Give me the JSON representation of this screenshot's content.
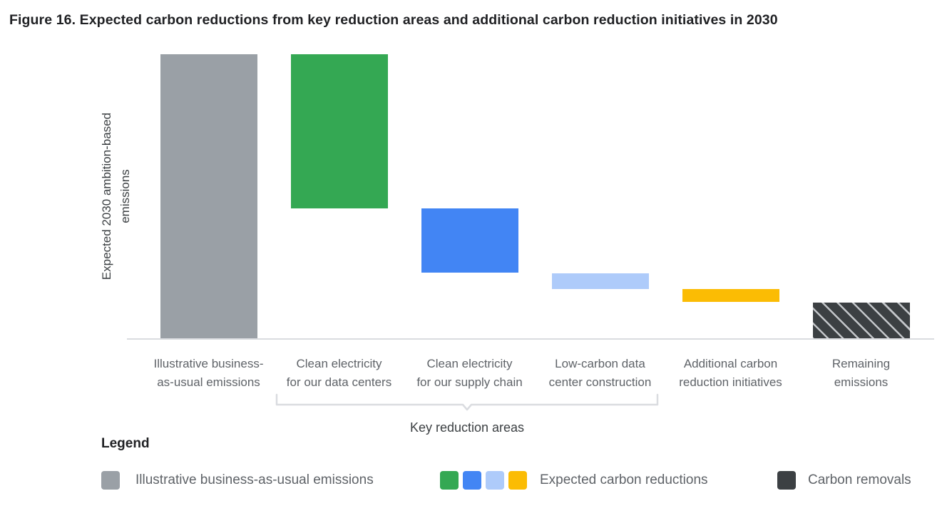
{
  "title": "Figure 16. Expected carbon reductions from key reduction areas and additional carbon reduction initiatives in 2030",
  "y_axis": {
    "label_line1": "Expected 2030",
    "label_line2": "ambition-based emissions"
  },
  "bracket": {
    "label": "Key reduction areas"
  },
  "legend": {
    "header": "Legend",
    "items": [
      {
        "id": "bau",
        "label": "Illustrative business-as-usual emissions",
        "swatches": [
          "gray"
        ],
        "hatch": false
      },
      {
        "id": "reductions",
        "label": "Expected carbon reductions",
        "swatches": [
          "green",
          "blue",
          "lightblue",
          "yellow"
        ],
        "hatch": false
      },
      {
        "id": "removals",
        "label": "Carbon removals",
        "swatches": [
          "dark"
        ],
        "hatch": true
      }
    ]
  },
  "colors": {
    "gray": "#9aa0a6",
    "green": "#34a853",
    "blue": "#4285f4",
    "lightblue": "#aecbfa",
    "yellow": "#fbbc04",
    "dark": "#3c4043",
    "axis_line": "#dadce0",
    "bracket_line": "#dadce0",
    "title_text": "#202124",
    "body_text": "#5f6368",
    "dark_text": "#3c4043"
  },
  "chart_data": {
    "type": "bar",
    "subtype": "waterfall",
    "title": "Figure 16. Expected carbon reductions from key reduction areas and additional carbon reduction initiatives in 2030",
    "xlabel": "",
    "ylabel": "Expected 2030 ambition-based emissions",
    "y_axis_numeric_labels_shown": false,
    "ylim_pct_of_bau": [
      0,
      100
    ],
    "grid": false,
    "legend_position": "bottom",
    "categories": [
      "Illustrative business-as-usual emissions",
      "Clean electricity for our data centers",
      "Clean electricity for our supply chain",
      "Low-carbon data center construction",
      "Additional carbon reduction initiatives",
      "Remaining emissions"
    ],
    "bars": [
      {
        "id": "business-as-usual-emissions",
        "label_lines": [
          "Illustrative business-",
          "as-usual emissions"
        ],
        "color_key": "gray",
        "hatch": false,
        "kind": "total",
        "value_top_pct": 100,
        "value_bottom_pct": 0,
        "height_pct": 100
      },
      {
        "id": "clean-electricity-data-centers",
        "label_lines": [
          "Clean electricity",
          "for our data centers"
        ],
        "color_key": "green",
        "hatch": false,
        "kind": "reduction",
        "value_top_pct": 100,
        "value_bottom_pct": 46,
        "height_pct": 54
      },
      {
        "id": "clean-electricity-supply-chain",
        "label_lines": [
          "Clean electricity",
          "for our supply chain"
        ],
        "color_key": "blue",
        "hatch": false,
        "kind": "reduction",
        "value_top_pct": 46,
        "value_bottom_pct": 23.5,
        "height_pct": 22.5
      },
      {
        "id": "low-carbon-data-center-construction",
        "label_lines": [
          "Low-carbon data",
          "center construction"
        ],
        "color_key": "lightblue",
        "hatch": false,
        "kind": "reduction",
        "value_top_pct": 23.25,
        "value_bottom_pct": 17.75,
        "height_pct": 5.5
      },
      {
        "id": "additional-carbon-reduction-initiatives",
        "label_lines": [
          "Additional carbon",
          "reduction initiatives"
        ],
        "color_key": "yellow",
        "hatch": false,
        "kind": "reduction",
        "value_top_pct": 17.75,
        "value_bottom_pct": 13.25,
        "height_pct": 4.5
      },
      {
        "id": "remaining-emissions",
        "label_lines": [
          "Remaining",
          "emissions"
        ],
        "color_key": "dark",
        "hatch": true,
        "kind": "removal",
        "value_top_pct": 13,
        "value_bottom_pct": 0,
        "height_pct": 13
      }
    ],
    "note": "Values estimated from bar pixel heights as percent of business-as-usual bar; no numeric axis labels are shown in the figure."
  }
}
